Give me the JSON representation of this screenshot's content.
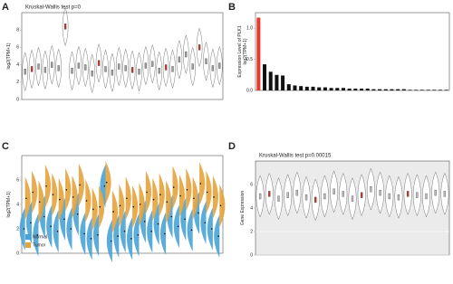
{
  "chart_data": [
    {
      "type": "violin",
      "panel": "A",
      "title": "Kruskal-Wallis test p=0",
      "ylabel": "log2(TPM+1)",
      "color": "#9e9e9e",
      "values": [
        3.2,
        3.5,
        3.8,
        3.4,
        4.0,
        3.6,
        8.4,
        3.3,
        3.9,
        3.7,
        3.0,
        4.2,
        3.5,
        3.1,
        3.8,
        3.6,
        3.4,
        3.2,
        3.9,
        4.1,
        3.3,
        3.7,
        3.5,
        4.6,
        5.2,
        3.8,
        6.0,
        4.4,
        3.6,
        3.9
      ],
      "ylim": [
        0,
        10
      ],
      "yticks": [
        0,
        2,
        4,
        6,
        8
      ]
    },
    {
      "type": "bar",
      "panel": "B",
      "ylabel": "Expression Level of PLK1\nlog2(TPM+1)",
      "colors": [
        "#e8392a",
        "#111111"
      ],
      "values": [
        1.17,
        0.42,
        0.3,
        0.25,
        0.24,
        0.1,
        0.08,
        0.07,
        0.06,
        0.06,
        0.05,
        0.05,
        0.04,
        0.04,
        0.04,
        0.03,
        0.03,
        0.03,
        0.03,
        0.02,
        0.02,
        0.02,
        0.02,
        0.02,
        0.02,
        0.01,
        0.01,
        0.01,
        0.01,
        0.01,
        0.01,
        0.01
      ],
      "ylim": [
        0,
        1.25
      ],
      "yticks": [
        {
          "value": 0,
          "label": "0.0"
        },
        0.5,
        {
          "value": 1,
          "label": "1.0"
        }
      ]
    },
    {
      "type": "split-violin",
      "panel": "C",
      "ylabel": "log2(TPM+1)",
      "series": [
        {
          "name": "Normal",
          "color": "#4aa3d6",
          "values": [
            2.0,
            2.5,
            1.5,
            3.0,
            2.2,
            1.8,
            2.8,
            2.0,
            3.2,
            1.6,
            1.2,
            1.5,
            5.5,
            1.0,
            1.4,
            1.8,
            1.2,
            1.5,
            2.6,
            1.8,
            2.4,
            1.6,
            3.0,
            2.2,
            2.8,
            1.9,
            3.3,
            2.5,
            2.0,
            1.4
          ]
        },
        {
          "name": "Tumor",
          "color": "#e6a23a",
          "values": [
            4.5,
            5.0,
            4.2,
            5.5,
            4.8,
            4.4,
            5.2,
            4.6,
            5.6,
            4.3,
            3.6,
            3.8,
            5.8,
            3.4,
            3.9,
            4.5,
            3.8,
            4.0,
            5.0,
            4.4,
            4.8,
            4.2,
            5.4,
            4.7,
            5.2,
            4.5,
            5.7,
            5.0,
            4.6,
            3.9
          ]
        }
      ],
      "ylim": [
        0,
        8
      ],
      "yticks": [
        0,
        2,
        4,
        6
      ]
    },
    {
      "type": "violin",
      "panel": "D",
      "title": "Kruskal-Wallis test p=0.00015",
      "ylabel": "Gene Expression",
      "color": "#bdbdbd",
      "values": [
        5.0,
        5.2,
        4.8,
        5.1,
        5.3,
        4.9,
        4.7,
        5.0,
        5.4,
        5.2,
        4.8,
        5.1,
        5.6,
        5.3,
        5.0,
        4.9,
        5.2,
        5.1,
        5.0,
        5.3,
        5.2
      ],
      "ylim": [
        0,
        8
      ],
      "yticks": [
        0,
        2,
        4,
        6
      ]
    }
  ]
}
